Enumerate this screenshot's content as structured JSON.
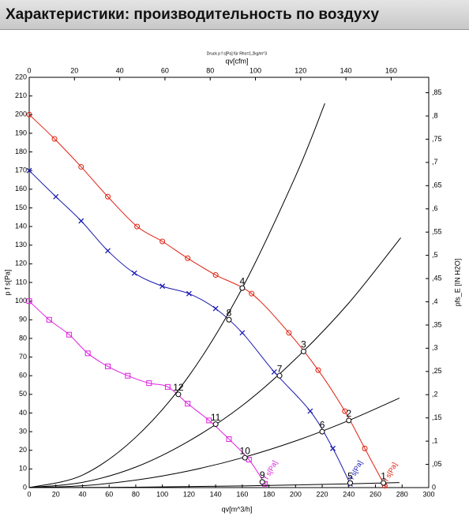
{
  "header": {
    "title": "Характеристики: производительность по воздуху"
  },
  "chart_data": {
    "type": "line",
    "subtitle": "Druck p f s[Pa] für Rho=1,2kg/m^3",
    "x_label": "qv[m^3/h]",
    "x2_label": "qv[cfm]",
    "y_label": "p f s[Pa]",
    "y2_label": "pfs_E [IN H2O]",
    "xlim": [
      0,
      300
    ],
    "xticks": [
      0,
      20,
      40,
      60,
      80,
      100,
      120,
      140,
      160,
      180,
      200,
      220,
      240,
      260,
      280,
      300
    ],
    "x2lim": [
      0,
      176.6
    ],
    "x2ticks": [
      0,
      20,
      40,
      60,
      80,
      100,
      120,
      140,
      160
    ],
    "ylim": [
      0,
      220
    ],
    "yticks": [
      0,
      10,
      20,
      30,
      40,
      50,
      60,
      70,
      80,
      90,
      100,
      110,
      120,
      130,
      140,
      150,
      160,
      170,
      180,
      190,
      200,
      210,
      220
    ],
    "y2lim": [
      0,
      0.8832
    ],
    "y2ticks": [
      0,
      {
        "value": 0.05,
        "label": ",05"
      },
      {
        "value": 0.1,
        "label": ",1"
      },
      {
        "value": 0.15,
        "label": ",15"
      },
      {
        "value": 0.2,
        "label": ",2"
      },
      {
        "value": 0.25,
        "label": ",25"
      },
      {
        "value": 0.3,
        "label": ",3"
      },
      {
        "value": 0.35,
        "label": ",35"
      },
      {
        "value": 0.4,
        "label": ",4"
      },
      {
        "value": 0.45,
        "label": ",45"
      },
      {
        "value": 0.5,
        "label": ",5"
      },
      {
        "value": 0.55,
        "label": ",55"
      },
      {
        "value": 0.6,
        "label": ",6"
      },
      {
        "value": 0.65,
        "label": ",65"
      },
      {
        "value": 0.7,
        "label": ",7"
      },
      {
        "value": 0.75,
        "label": ",75"
      },
      {
        "value": 0.8,
        "label": ",8"
      },
      {
        "value": 0.85,
        "label": ",85"
      }
    ],
    "series": [
      {
        "name": "p f s[Pa]",
        "color": "#e02010",
        "marker": "circle",
        "x": [
          0,
          19,
          39,
          59,
          81,
          100,
          119,
          140,
          167,
          195,
          217,
          237,
          252,
          267
        ],
        "values": [
          200,
          187,
          172,
          156,
          140,
          132,
          123,
          114,
          104,
          83,
          63,
          41,
          21,
          1
        ]
      },
      {
        "name": "p f s[Pa]",
        "color": "#1a1ab0",
        "marker": "cross",
        "x": [
          0,
          20,
          39,
          59,
          79,
          100,
          120,
          140,
          160,
          184,
          211,
          228,
          241
        ],
        "values": [
          170,
          156,
          143,
          127,
          115,
          108,
          104,
          96,
          83,
          62,
          41,
          21,
          2
        ]
      },
      {
        "name": "p f s[Pa]",
        "color": "#e020e0",
        "marker": "square",
        "x": [
          0,
          15,
          30,
          44,
          59,
          74,
          90,
          104,
          119,
          135,
          150,
          165,
          177
        ],
        "values": [
          100,
          90,
          82,
          72,
          65,
          60,
          56,
          54,
          45,
          36,
          26,
          15,
          2
        ]
      },
      {
        "color": "#000000",
        "marker": "none",
        "x": [
          0,
          40,
          80,
          120,
          160,
          200,
          222
        ],
        "values": [
          0,
          6.7,
          27,
          60,
          107,
          167,
          206
        ]
      },
      {
        "color": "#000000",
        "marker": "none",
        "x": [
          0,
          40,
          80,
          120,
          160,
          200,
          240,
          279
        ],
        "values": [
          0,
          2.8,
          11,
          25,
          44,
          69,
          99,
          134
        ]
      },
      {
        "color": "#000000",
        "marker": "none",
        "x": [
          0,
          40,
          80,
          120,
          160,
          200,
          240,
          278
        ],
        "values": [
          0,
          1,
          4,
          9,
          16,
          25,
          36,
          48
        ]
      },
      {
        "color": "#000000",
        "marker": "none",
        "x": [
          0,
          80,
          160,
          240,
          278
        ],
        "values": [
          0,
          0.2,
          0.9,
          2,
          2.7
        ]
      }
    ],
    "operating_points": [
      {
        "label": "1",
        "x": 266,
        "y": 2.5
      },
      {
        "label": "2",
        "x": 240,
        "y": 36
      },
      {
        "label": "3",
        "x": 206,
        "y": 73
      },
      {
        "label": "4",
        "x": 160,
        "y": 107
      },
      {
        "label": "5",
        "x": 241,
        "y": 2.5
      },
      {
        "label": "6",
        "x": 220,
        "y": 30
      },
      {
        "label": "7",
        "x": 188,
        "y": 60
      },
      {
        "label": "8",
        "x": 150,
        "y": 90
      },
      {
        "label": "9",
        "x": 175,
        "y": 3
      },
      {
        "label": "10",
        "x": 162,
        "y": 16
      },
      {
        "label": "11",
        "x": 140,
        "y": 34
      },
      {
        "label": "12",
        "x": 112,
        "y": 50
      }
    ]
  }
}
